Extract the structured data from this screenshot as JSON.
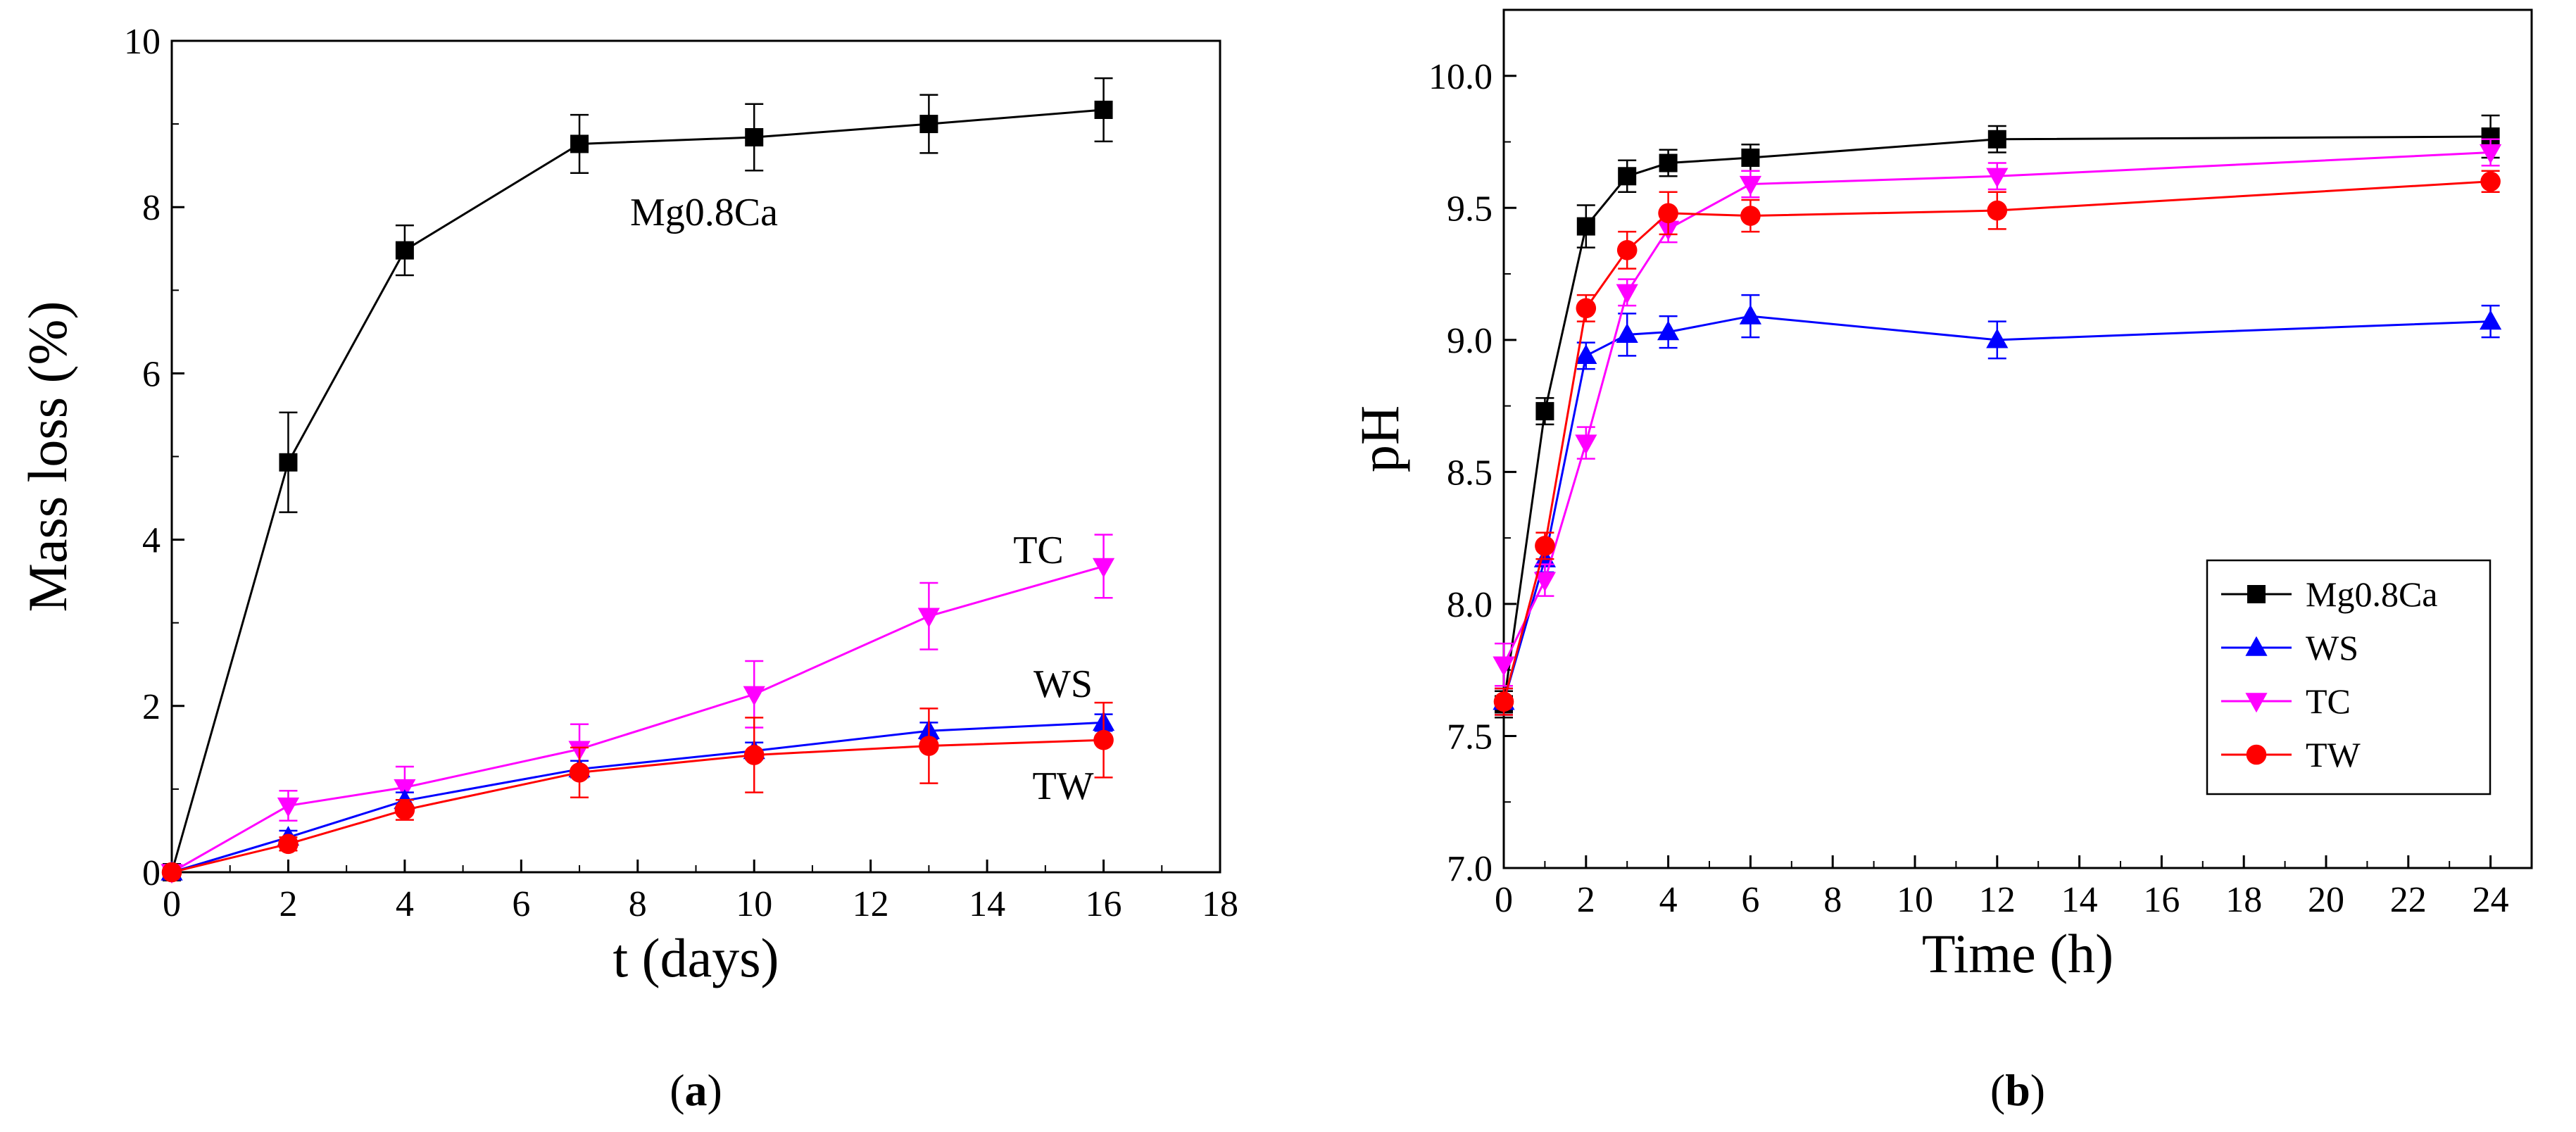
{
  "chart_data": [
    {
      "type": "line",
      "panel_label": "(a)",
      "panel_letter": "a",
      "xlabel": "t (days)",
      "ylabel": "Mass loss (%)",
      "xlim": [
        0,
        18
      ],
      "ylim": [
        0,
        10
      ],
      "xticks": [
        0,
        2,
        4,
        6,
        8,
        10,
        12,
        14,
        16,
        18
      ],
      "yticks": [
        0,
        2,
        4,
        6,
        8,
        10
      ],
      "x": [
        0,
        2,
        4,
        7,
        10,
        13,
        16
      ],
      "annotations": [
        "Mg0.8Ca",
        "TC",
        "WS",
        "TW"
      ],
      "series": [
        {
          "name": "Mg0.8Ca",
          "color": "#000000",
          "marker": "square",
          "values": [
            0,
            4.93,
            7.48,
            8.76,
            8.84,
            9.0,
            9.17
          ],
          "errors": [
            0,
            0.6,
            0.3,
            0.35,
            0.4,
            0.35,
            0.38
          ]
        },
        {
          "name": "TC",
          "color": "#ff00ff",
          "marker": "triangle-down",
          "values": [
            0,
            0.8,
            1.02,
            1.48,
            2.14,
            3.08,
            3.68
          ],
          "errors": [
            0,
            0.18,
            0.25,
            0.3,
            0.4,
            0.4,
            0.38
          ]
        },
        {
          "name": "WS",
          "color": "#0000ff",
          "marker": "triangle-up",
          "values": [
            0,
            0.42,
            0.86,
            1.24,
            1.46,
            1.7,
            1.8
          ],
          "errors": [
            0,
            0.08,
            0.1,
            0.1,
            0.1,
            0.1,
            0.1
          ]
        },
        {
          "name": "TW",
          "color": "#ff0000",
          "marker": "circle",
          "values": [
            0,
            0.34,
            0.75,
            1.2,
            1.41,
            1.52,
            1.59
          ],
          "errors": [
            0,
            0.08,
            0.12,
            0.3,
            0.45,
            0.45,
            0.45
          ]
        }
      ]
    },
    {
      "type": "line",
      "panel_label": "(b)",
      "panel_letter": "b",
      "xlabel": "Time (h)",
      "ylabel": "pH",
      "xlim": [
        0,
        25
      ],
      "ylim": [
        7.0,
        10.25
      ],
      "xticks": [
        0,
        2,
        4,
        6,
        8,
        10,
        12,
        14,
        16,
        18,
        20,
        22,
        24
      ],
      "yticks": [
        "7.0",
        "7.5",
        "8.0",
        "8.5",
        "9.0",
        "9.5",
        "10.0"
      ],
      "x": [
        0,
        1,
        2,
        3,
        4,
        6,
        12,
        24
      ],
      "legend": {
        "position": "lower-right",
        "entries": [
          "Mg0.8Ca",
          "WS",
          "TC",
          "TW"
        ]
      },
      "series": [
        {
          "name": "Mg0.8Ca",
          "color": "#000000",
          "marker": "square",
          "values": [
            7.62,
            8.73,
            9.43,
            9.62,
            9.67,
            9.69,
            9.76,
            9.77
          ],
          "errors": [
            0.05,
            0.05,
            0.08,
            0.06,
            0.05,
            0.05,
            0.05,
            0.08
          ]
        },
        {
          "name": "WS",
          "color": "#0000ff",
          "marker": "triangle-up",
          "values": [
            7.63,
            8.17,
            8.94,
            9.02,
            9.03,
            9.09,
            9.0,
            9.07
          ],
          "errors": [
            0.05,
            0.05,
            0.05,
            0.08,
            0.06,
            0.08,
            0.07,
            0.06
          ]
        },
        {
          "name": "TC",
          "color": "#ff00ff",
          "marker": "triangle-down",
          "values": [
            7.77,
            8.09,
            8.61,
            9.18,
            9.42,
            9.59,
            9.62,
            9.71
          ],
          "errors": [
            0.08,
            0.06,
            0.06,
            0.05,
            0.05,
            0.05,
            0.05,
            0.05
          ]
        },
        {
          "name": "TW",
          "color": "#ff0000",
          "marker": "circle",
          "values": [
            7.63,
            8.22,
            9.12,
            9.34,
            9.48,
            9.47,
            9.49,
            9.6
          ],
          "errors": [
            0.05,
            0.05,
            0.05,
            0.07,
            0.08,
            0.06,
            0.07,
            0.04
          ]
        }
      ]
    }
  ]
}
